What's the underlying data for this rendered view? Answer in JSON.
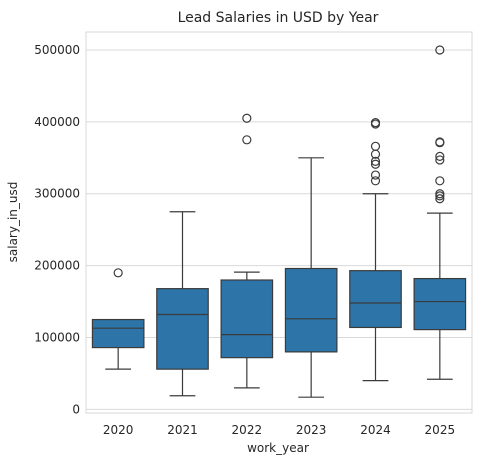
{
  "chart_data": {
    "type": "box",
    "title": "Lead Salaries in USD by Year",
    "xlabel": "work_year",
    "ylabel": "salary_in_usd",
    "ylim": [
      -5000,
      525000
    ],
    "yticks": [
      0,
      100000,
      200000,
      300000,
      400000,
      500000
    ],
    "ytick_labels": [
      "0",
      "100000",
      "200000",
      "300000",
      "400000",
      "500000"
    ],
    "grid": "horizontal",
    "box_color": "#2d74a8",
    "line_color": "#3b3b3b",
    "grid_color": "#d9d9d9",
    "categories": [
      "2020",
      "2021",
      "2022",
      "2023",
      "2024",
      "2025"
    ],
    "boxes": [
      {
        "category": "2020",
        "whisker_low": 56000,
        "q1": 86000,
        "median": 113000,
        "q3": 125000,
        "whisker_high": 125000,
        "outliers": [
          190000
        ]
      },
      {
        "category": "2021",
        "whisker_low": 19000,
        "q1": 56000,
        "median": 132000,
        "q3": 168000,
        "whisker_high": 275000,
        "outliers": []
      },
      {
        "category": "2022",
        "whisker_low": 30000,
        "q1": 72000,
        "median": 104000,
        "q3": 180000,
        "whisker_high": 191000,
        "outliers": [
          375000,
          405000
        ]
      },
      {
        "category": "2023",
        "whisker_low": 17000,
        "q1": 80000,
        "median": 126000,
        "q3": 196000,
        "whisker_high": 350000,
        "outliers": []
      },
      {
        "category": "2024",
        "whisker_low": 40000,
        "q1": 114000,
        "median": 148000,
        "q3": 193000,
        "whisker_high": 300000,
        "outliers": [
          318000,
          326000,
          341000,
          345000,
          355000,
          366000,
          397000,
          399000
        ]
      },
      {
        "category": "2025",
        "whisker_low": 42000,
        "q1": 111000,
        "median": 150000,
        "q3": 182000,
        "whisker_high": 273000,
        "outliers": [
          293000,
          297000,
          300000,
          318000,
          347000,
          352000,
          371000,
          372000,
          500000
        ]
      }
    ]
  }
}
